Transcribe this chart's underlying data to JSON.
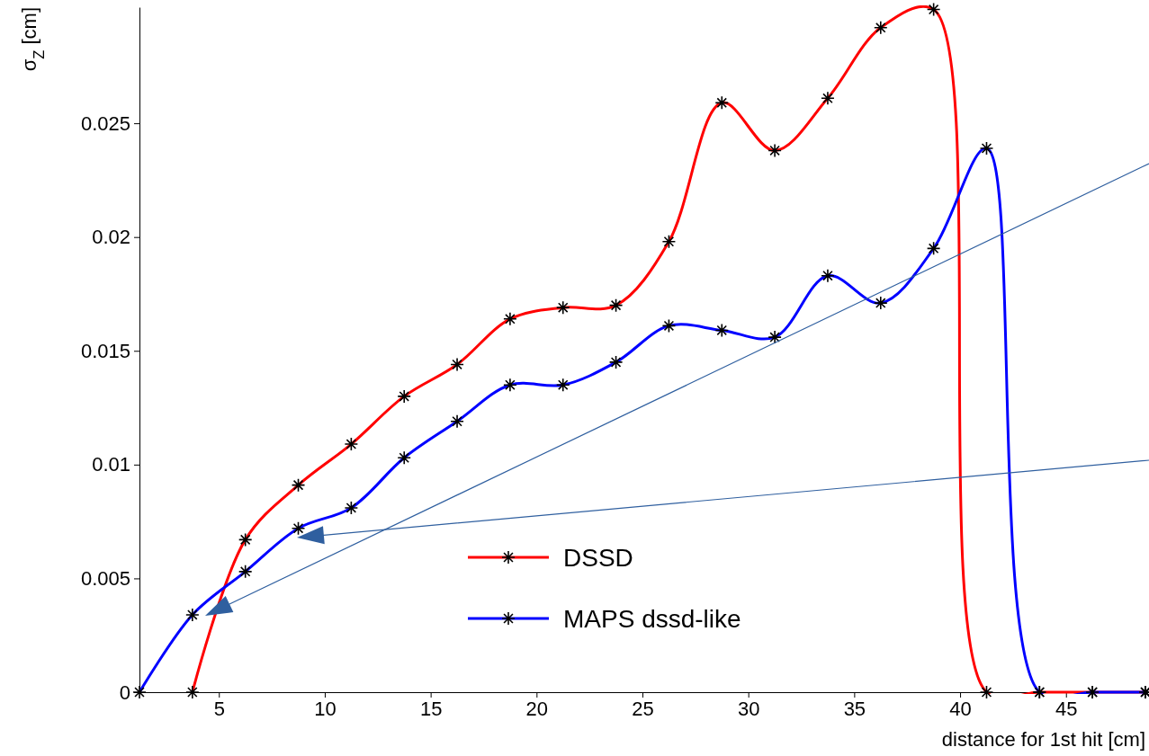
{
  "chart_data": {
    "type": "line",
    "xlabel": "distance for 1st hit [cm]",
    "ylabel": "σ$_{Z}$ [cm]",
    "x": [
      1.25,
      3.75,
      6.25,
      8.75,
      11.25,
      13.75,
      16.25,
      18.75,
      21.25,
      23.75,
      26.25,
      28.75,
      31.25,
      33.75,
      36.25,
      38.75,
      41.25,
      43.75,
      46.25,
      48.75
    ],
    "series": [
      {
        "name": "DSSD",
        "color": "#ff0000",
        "values": [
          null,
          0,
          0.0067,
          0.0091,
          0.0109,
          0.013,
          0.0144,
          0.0164,
          0.0169,
          0.017,
          0.0198,
          0.0259,
          0.0238,
          0.0261,
          0.0292,
          0.03,
          0,
          0,
          0,
          0
        ]
      },
      {
        "name": "MAPS dssd-like",
        "color": "#0000ff",
        "values": [
          0,
          0.0034,
          0.0053,
          0.0072,
          0.0081,
          0.0103,
          0.0119,
          0.0135,
          0.0135,
          0.0145,
          0.0161,
          0.0159,
          0.0156,
          0.0183,
          0.0171,
          0.0195,
          0.0239,
          0,
          0,
          0
        ]
      }
    ],
    "xlim": [
      1.25,
      48.75
    ],
    "xticks": [
      5,
      10,
      15,
      20,
      25,
      30,
      35,
      40,
      45
    ],
    "ylim": [
      0,
      0.0301
    ],
    "yticks": [
      0,
      0.005,
      0.01,
      0.015,
      0.02,
      0.025
    ],
    "marker": "cross",
    "line_style": "solid",
    "legend": "bottom",
    "grid": false
  }
}
